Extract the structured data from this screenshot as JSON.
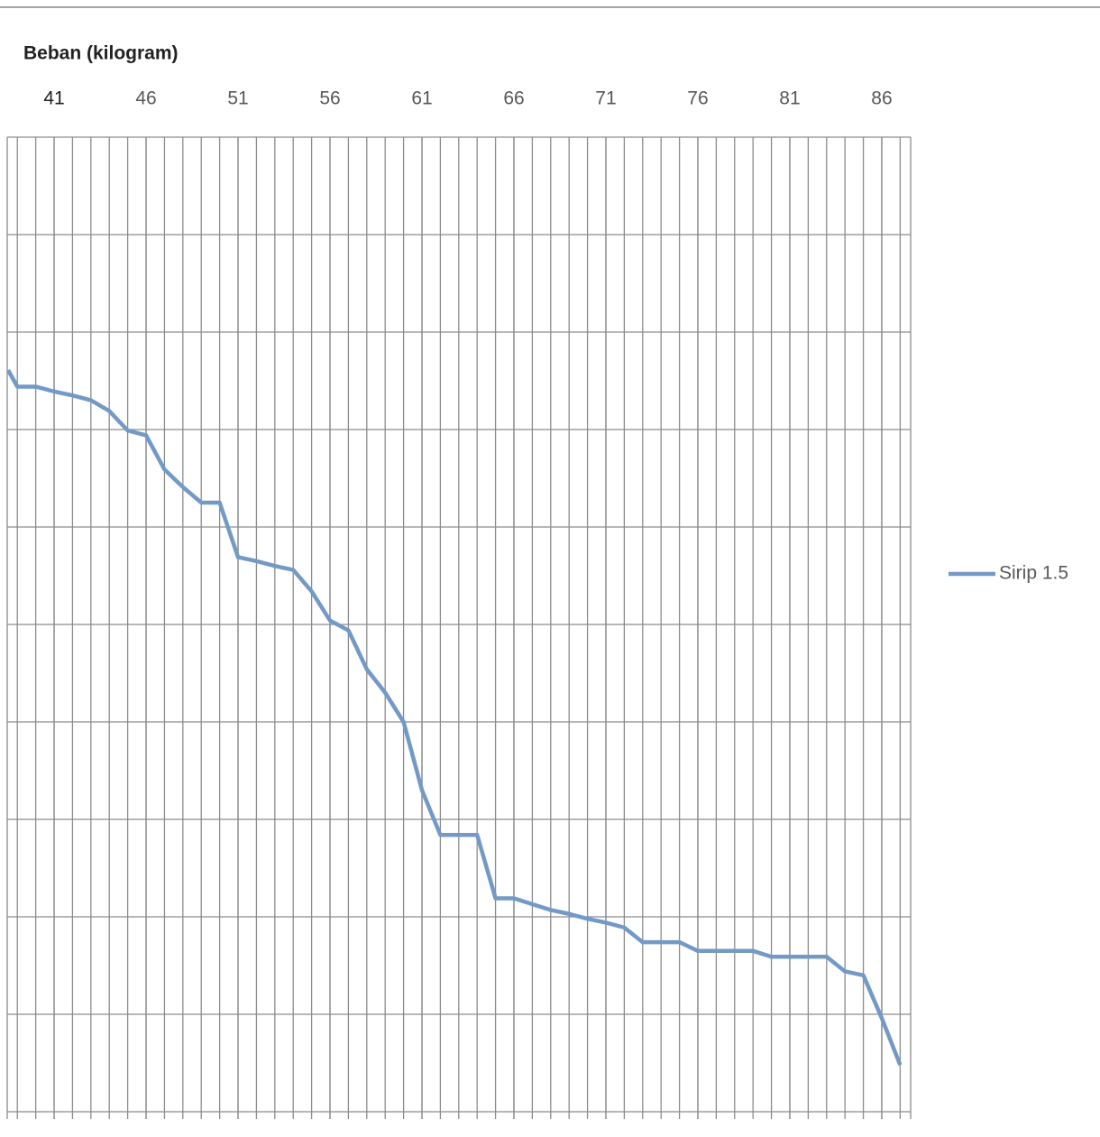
{
  "chart_data": {
    "type": "line",
    "title": "Beban (kilogram)",
    "x": [
      38.5,
      39,
      40,
      41,
      42,
      43,
      44,
      45,
      46,
      47,
      48,
      49,
      50,
      51,
      52,
      53,
      54,
      55,
      56,
      57,
      58,
      59,
      60,
      61,
      62,
      63,
      64,
      65,
      66,
      67,
      68,
      69,
      70,
      71,
      72,
      73,
      74,
      75,
      76,
      77,
      78,
      79,
      80,
      81,
      82,
      83,
      84,
      85,
      86,
      87
    ],
    "series": [
      {
        "name": "Sirip 1.5",
        "color": "#7399c6",
        "values": [
          7.61,
          7.44,
          7.44,
          7.39,
          7.35,
          7.3,
          7.19,
          6.99,
          6.94,
          6.59,
          6.41,
          6.25,
          6.25,
          5.69,
          5.65,
          5.6,
          5.56,
          5.34,
          5.04,
          4.94,
          4.54,
          4.3,
          4.0,
          3.3,
          2.84,
          2.84,
          2.84,
          2.19,
          2.19,
          2.13,
          2.07,
          2.03,
          1.98,
          1.94,
          1.89,
          1.74,
          1.74,
          1.74,
          1.65,
          1.65,
          1.65,
          1.65,
          1.59,
          1.59,
          1.59,
          1.59,
          1.44,
          1.4,
          0.96,
          0.48
        ]
      }
    ],
    "xlim": [
      38.45,
      87.57
    ],
    "xticks": [
      41,
      46,
      51,
      56,
      61,
      66,
      71,
      76,
      81,
      86
    ],
    "x_axis_position": "top",
    "ylim": [
      0,
      10
    ],
    "yticks": [
      0,
      1,
      2,
      3,
      4,
      5,
      6,
      7,
      8,
      9,
      10
    ],
    "show_ytick_labels": false,
    "grid": true,
    "legend": "right"
  }
}
